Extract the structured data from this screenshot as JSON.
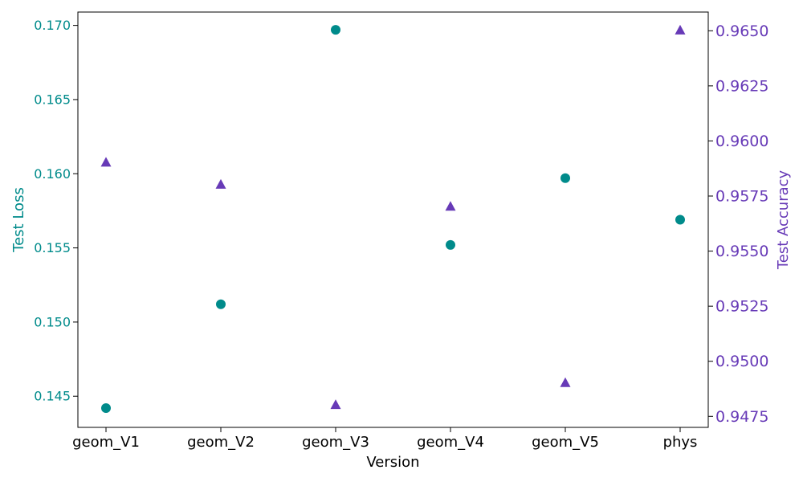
{
  "chart_data": {
    "type": "scatter",
    "categories": [
      "geom_V1",
      "geom_V2",
      "geom_V3",
      "geom_V4",
      "geom_V5",
      "phys"
    ],
    "xlabel": "Version",
    "series": [
      {
        "axis": "left",
        "marker": "circle",
        "color": "#008b8b",
        "values": [
          0.1442,
          0.1512,
          0.1697,
          0.1552,
          0.1597,
          0.1569
        ]
      },
      {
        "axis": "right",
        "marker": "triangle",
        "color": "#673ab7",
        "values": [
          0.959,
          0.958,
          0.948,
          0.957,
          0.949,
          0.965
        ]
      }
    ],
    "y_left": {
      "label": "Test Loss",
      "color": "#008b8b",
      "range": [
        0.1429,
        0.1709
      ],
      "ticks": [
        0.145,
        0.15,
        0.155,
        0.16,
        0.165,
        0.17
      ],
      "tick_labels": [
        "0.145",
        "0.150",
        "0.155",
        "0.160",
        "0.165",
        "0.170"
      ]
    },
    "y_right": {
      "label": "Test Accuracy",
      "color": "#673ab7",
      "range": [
        0.947,
        0.96585
      ],
      "ticks": [
        0.9475,
        0.95,
        0.9525,
        0.955,
        0.9575,
        0.96,
        0.9625,
        0.965
      ],
      "tick_labels": [
        "0.9475",
        "0.9500",
        "0.9525",
        "0.9550",
        "0.9575",
        "0.9600",
        "0.9625",
        "0.9650"
      ]
    },
    "grid": false
  }
}
